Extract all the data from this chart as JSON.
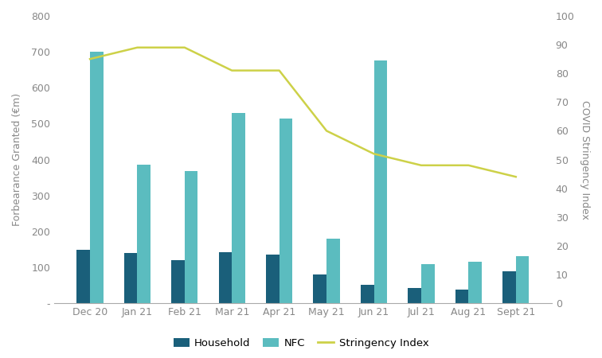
{
  "months": [
    "Dec 20",
    "Jan 21",
    "Feb 21",
    "Mar 21",
    "Apr 21",
    "May 21",
    "Jun 21",
    "Jul 21",
    "Aug 21",
    "Sept 21"
  ],
  "household": [
    148,
    140,
    120,
    142,
    135,
    80,
    52,
    42,
    38,
    88
  ],
  "nfc": [
    700,
    385,
    368,
    530,
    515,
    180,
    675,
    108,
    115,
    130
  ],
  "stringency": [
    85,
    89,
    89,
    81,
    81,
    60,
    52,
    48,
    48,
    44
  ],
  "bar_color_household": "#1a5f7a",
  "bar_color_nfc": "#5bbcbf",
  "line_color": "#cdd148",
  "ylabel_left": "Forbearance Granted (€m)",
  "ylabel_right": "COVID Stringency Index",
  "ylim_left": [
    0,
    800
  ],
  "ylim_right": [
    0,
    100
  ],
  "yticks_left": [
    0,
    100,
    200,
    300,
    400,
    500,
    600,
    700,
    800
  ],
  "ytick_labels_left": [
    "-",
    "100",
    "200",
    "300",
    "400",
    "500",
    "600",
    "700",
    "800"
  ],
  "yticks_right": [
    0,
    10,
    20,
    30,
    40,
    50,
    60,
    70,
    80,
    90,
    100
  ],
  "background_color": "#ffffff",
  "legend_labels": [
    "Household",
    "NFC",
    "Stringency Index"
  ],
  "bar_width": 0.28,
  "label_fontsize": 9,
  "tick_fontsize": 9,
  "legend_fontsize": 9.5,
  "axis_color": "#aaaaaa",
  "tick_color": "#888888"
}
